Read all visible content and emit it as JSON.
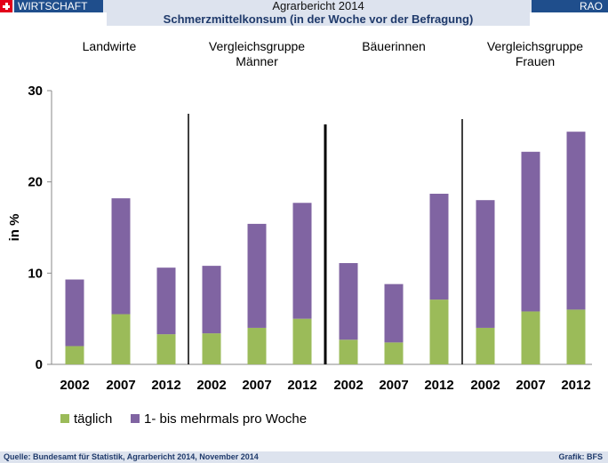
{
  "header": {
    "section": "WIRTSCHAFT",
    "title": "Agrarbericht 2014",
    "brand": "RAO",
    "subtitle": "Schmerzmittelkonsum (in der Woche vor der Befragung)"
  },
  "footer": {
    "source": "Quelle: Bundesamt für Statistik, Agrarbericht 2014, November 2014",
    "credit": "Grafik: BFS"
  },
  "colors": {
    "green": "#9bbb59",
    "purple": "#8064a2",
    "accent": "#1f4e8c"
  },
  "chart_data": {
    "type": "bar",
    "stacked": true,
    "ylabel": "in %",
    "ylim": [
      0,
      30
    ],
    "yticks": [
      0,
      10,
      20,
      30
    ],
    "groups": [
      {
        "label": [
          "Landwirte"
        ],
        "categories": [
          "2002",
          "2007",
          "2012"
        ]
      },
      {
        "label": [
          "Vergleichsgruppe",
          "Männer"
        ],
        "categories": [
          "2002",
          "2007",
          "2012"
        ]
      },
      {
        "label": [
          "Bäuerinnen"
        ],
        "categories": [
          "2002",
          "2007",
          "2012"
        ]
      },
      {
        "label": [
          "Vergleichsgruppe",
          "Frauen"
        ],
        "categories": [
          "2002",
          "2007",
          "2012"
        ]
      }
    ],
    "series": [
      {
        "name": "täglich",
        "color": "#9bbb59",
        "values": [
          2.0,
          5.5,
          3.3,
          3.4,
          4.0,
          5.0,
          2.7,
          2.4,
          7.1,
          4.0,
          5.8,
          6.0
        ]
      },
      {
        "name": "1- bis mehrmals pro Woche",
        "color": "#8064a2",
        "values": [
          7.3,
          12.7,
          7.3,
          7.4,
          11.4,
          12.7,
          8.4,
          6.4,
          11.6,
          14.0,
          17.5,
          19.5
        ]
      }
    ],
    "legend_position": "bottom-left",
    "grid": false
  }
}
